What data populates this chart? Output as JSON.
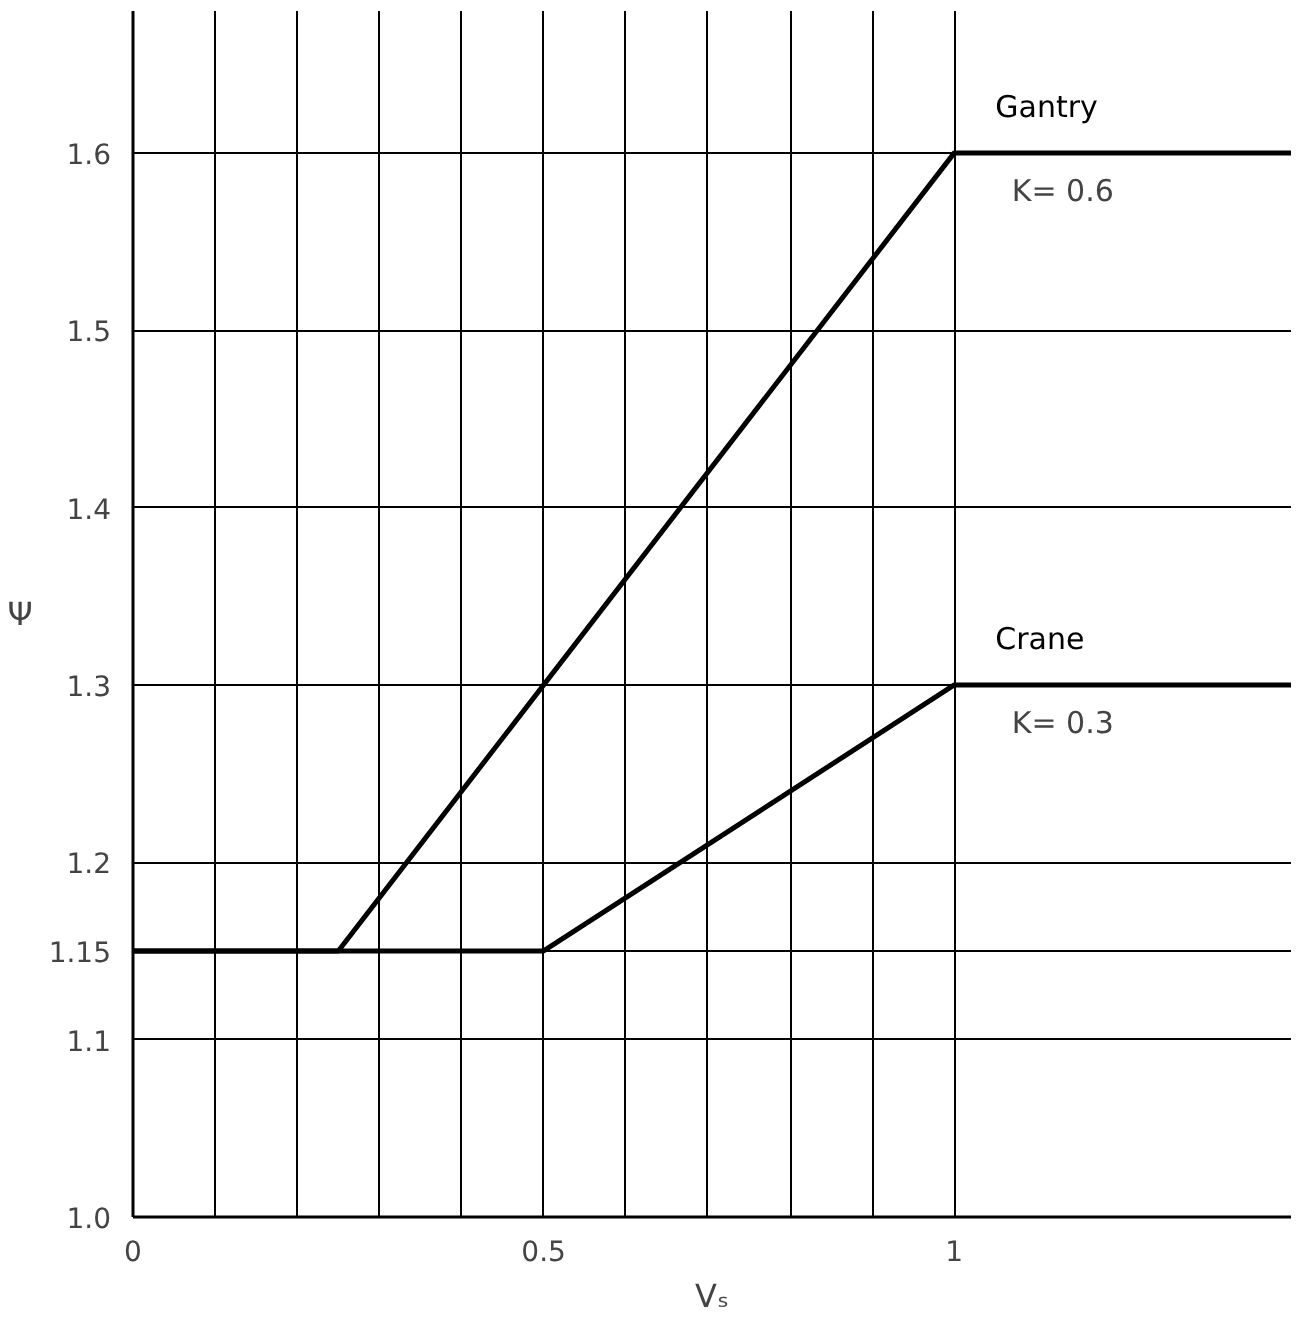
{
  "chart_data": {
    "type": "line",
    "xlabel": "Vₛ",
    "ylabel": "Ψ",
    "x": [
      0,
      0.25,
      0.5,
      1,
      1.41
    ],
    "series": [
      {
        "name": "Gantry",
        "color": "#000000",
        "values": [
          1.15,
          1.15,
          null,
          1.6,
          1.6
        ]
      },
      {
        "name": "Crane",
        "color": "#000000",
        "values": [
          1.15,
          null,
          1.15,
          1.3,
          1.3
        ]
      }
    ],
    "annotations": [
      "K= 0.6",
      "K= 0.3"
    ],
    "xlim": [
      0,
      1.41
    ],
    "ylim": [
      1.0,
      1.68
    ],
    "xticks": [
      0,
      {
        "value": 0.1,
        "label": null
      },
      {
        "value": 0.2,
        "label": null
      },
      {
        "value": 0.3,
        "label": null
      },
      {
        "value": 0.4,
        "label": null
      },
      0.5,
      {
        "value": 0.6,
        "label": null
      },
      {
        "value": 0.7,
        "label": null
      },
      {
        "value": 0.8,
        "label": null
      },
      {
        "value": 0.9,
        "label": null
      },
      1
    ],
    "yticks": [
      {
        "value": 1.0,
        "label": "1.0"
      },
      1.1,
      1.15,
      1.2,
      1.3,
      1.4,
      1.5,
      1.6
    ],
    "grid": true,
    "marker": "none",
    "line_style": "solid"
  }
}
